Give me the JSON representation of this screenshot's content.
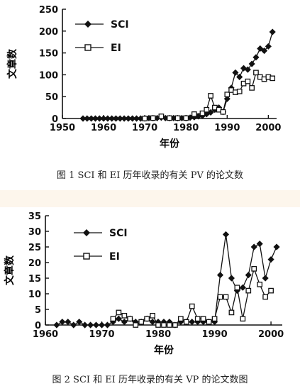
{
  "chart_data": [
    {
      "type": "line",
      "title": "",
      "caption": "图 1    SCI 和 EI 历年收录的有关 PV 的论文数",
      "xlabel": "年份",
      "ylabel": "文章数",
      "xlim": [
        1950,
        2002
      ],
      "ylim": [
        0,
        250
      ],
      "xticks": [
        1950,
        1960,
        1970,
        1980,
        1990,
        2000
      ],
      "yticks": [
        0,
        50,
        100,
        150,
        200,
        250
      ],
      "legend_position": "top-left",
      "series": [
        {
          "name": "SCI",
          "marker": "diamond-filled",
          "x": [
            1955,
            1956,
            1957,
            1958,
            1959,
            1960,
            1961,
            1962,
            1963,
            1964,
            1965,
            1966,
            1967,
            1968,
            1969,
            1970,
            1971,
            1972,
            1973,
            1974,
            1975,
            1976,
            1977,
            1978,
            1979,
            1980,
            1981,
            1982,
            1983,
            1984,
            1985,
            1986,
            1987,
            1988,
            1989,
            1990,
            1991,
            1992,
            1993,
            1994,
            1995,
            1996,
            1997,
            1998,
            1999,
            2000,
            2001
          ],
          "y": [
            0,
            0,
            0,
            0,
            0,
            0,
            0,
            0,
            0,
            0,
            0,
            0,
            0,
            0,
            0,
            0,
            1,
            1,
            1,
            2,
            1,
            1,
            1,
            1,
            1,
            1,
            2,
            3,
            5,
            6,
            10,
            14,
            20,
            25,
            15,
            45,
            70,
            105,
            95,
            115,
            112,
            125,
            140,
            160,
            155,
            165,
            198
          ]
        },
        {
          "name": "EI",
          "marker": "square-open",
          "x": [
            1970,
            1972,
            1974,
            1976,
            1978,
            1980,
            1982,
            1984,
            1985,
            1986,
            1987,
            1988,
            1989,
            1990,
            1991,
            1992,
            1993,
            1994,
            1995,
            1996,
            1997,
            1998,
            1999,
            2000,
            2001
          ],
          "y": [
            0,
            1,
            5,
            1,
            1,
            1,
            10,
            12,
            20,
            52,
            25,
            20,
            15,
            55,
            65,
            60,
            62,
            80,
            85,
            70,
            105,
            95,
            90,
            95,
            92
          ]
        }
      ]
    },
    {
      "type": "line",
      "title": "",
      "caption": "图 2    SCI 和 EI 历年收录的有关 VP 的论文数图",
      "xlabel": "年份",
      "ylabel": "文章数",
      "xlim": [
        1960,
        2002
      ],
      "ylim": [
        0,
        35
      ],
      "xticks": [
        1960,
        1970,
        1980,
        1990,
        2000
      ],
      "yticks": [
        0,
        5,
        10,
        15,
        20,
        25,
        30,
        35
      ],
      "legend_position": "top-left",
      "series": [
        {
          "name": "SCI",
          "marker": "diamond-filled",
          "x": [
            1962,
            1963,
            1964,
            1965,
            1966,
            1967,
            1968,
            1969,
            1970,
            1971,
            1972,
            1973,
            1974,
            1975,
            1976,
            1977,
            1978,
            1979,
            1980,
            1981,
            1982,
            1983,
            1984,
            1985,
            1986,
            1987,
            1988,
            1989,
            1990,
            1991,
            1992,
            1993,
            1994,
            1995,
            1996,
            1997,
            1998,
            1999,
            2000,
            2001
          ],
          "y": [
            0,
            1,
            1,
            0,
            1,
            0,
            0,
            0,
            0,
            0,
            1,
            2,
            1,
            2,
            1,
            1,
            2,
            1,
            1,
            1,
            1,
            0,
            1,
            1,
            1,
            1,
            1,
            1,
            1,
            16,
            29,
            15,
            11,
            12,
            16,
            25,
            26,
            15,
            21,
            25
          ]
        },
        {
          "name": "EI",
          "marker": "square-open",
          "x": [
            1972,
            1973,
            1974,
            1975,
            1976,
            1977,
            1978,
            1979,
            1980,
            1981,
            1982,
            1983,
            1984,
            1985,
            1986,
            1987,
            1988,
            1989,
            1990,
            1991,
            1992,
            1993,
            1994,
            1995,
            1996,
            1997,
            1998,
            1999,
            2000
          ],
          "y": [
            2,
            4,
            3,
            2,
            0,
            1,
            2,
            3,
            0,
            0,
            0,
            0,
            2,
            1,
            6,
            2,
            2,
            1,
            2,
            9,
            9,
            4,
            12,
            2,
            11,
            18,
            13,
            9,
            11
          ]
        }
      ]
    }
  ]
}
